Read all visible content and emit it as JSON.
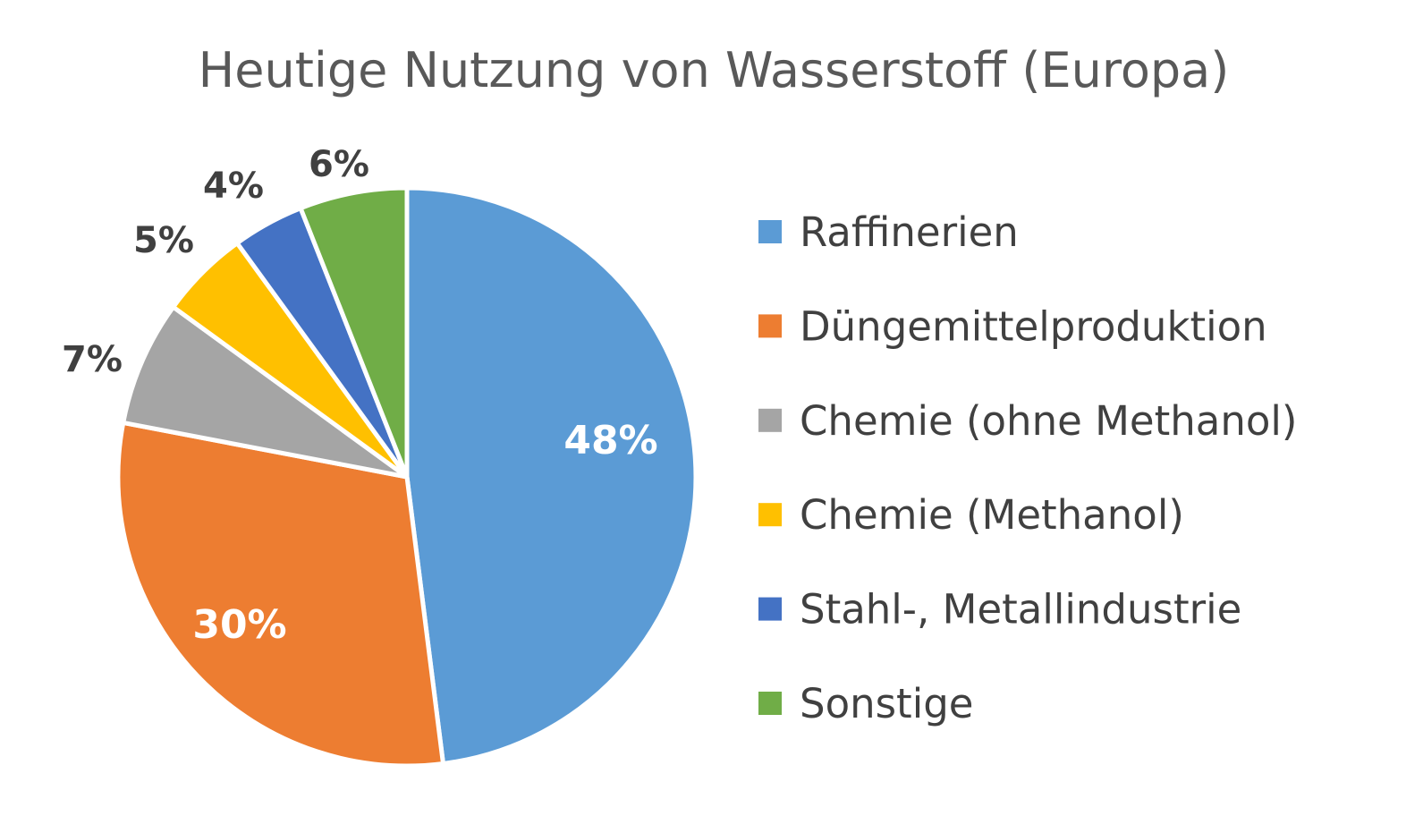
{
  "chart_data": {
    "type": "pie",
    "title": "Heutige Nutzung von Wasserstoff (Europa)",
    "categories": [
      "Raffinerien",
      "Düngemittelproduktion",
      "Chemie (ohne Methanol)",
      "Chemie (Methanol)",
      "Stahl-, Metallindustrie",
      "Sonstige"
    ],
    "values": [
      48,
      30,
      7,
      5,
      4,
      6
    ],
    "data_labels": [
      "48%",
      "30%",
      "7%",
      "5%",
      "4%",
      "6%"
    ],
    "colors": [
      "#5B9BD5",
      "#ED7D31",
      "#A5A5A5",
      "#FFC000",
      "#4472C4",
      "#70AD47"
    ],
    "legend_position": "right",
    "start_angle_deg": 0,
    "direction": "clockwise"
  }
}
